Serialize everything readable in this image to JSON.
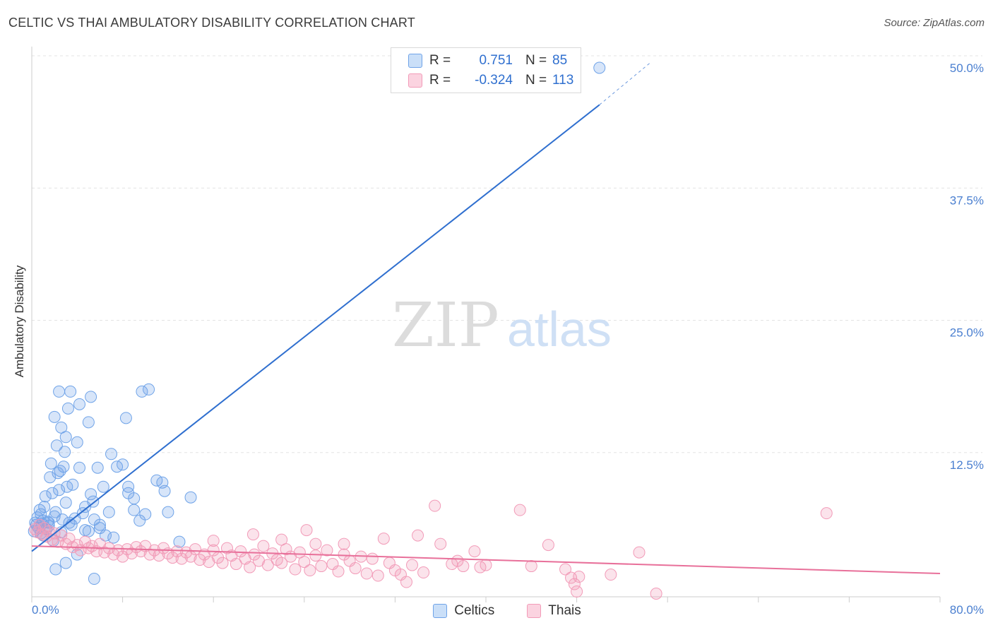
{
  "title": "CELTIC VS THAI AMBULATORY DISABILITY CORRELATION CHART",
  "source": "Source: ZipAtlas.com",
  "watermark": {
    "zip": "ZIP",
    "atlas": "atlas"
  },
  "stats": [
    {
      "r_label": "R =",
      "r_value": "0.751",
      "n_label": "N =",
      "n_value": "85"
    },
    {
      "r_label": "R =",
      "r_value": "-0.324",
      "n_label": "N =",
      "n_value": "113"
    }
  ],
  "legend": [
    {
      "label": "Celtics"
    },
    {
      "label": "Thais"
    }
  ],
  "chart_data": {
    "type": "scatter",
    "title": "CELTIC VS THAI AMBULATORY DISABILITY CORRELATION CHART",
    "xlabel": "",
    "ylabel": "Ambulatory Disability",
    "xlim": [
      0,
      80
    ],
    "ylim": [
      0,
      50
    ],
    "x_tick_labels": [
      {
        "value": 0,
        "label": "0.0%"
      },
      {
        "value": 80,
        "label": "80.0%"
      }
    ],
    "y_tick_labels": [
      {
        "value": 50,
        "label": "50.0%"
      },
      {
        "value": 37.5,
        "label": "37.5%"
      },
      {
        "value": 25,
        "label": "25.0%"
      },
      {
        "value": 12.5,
        "label": "12.5%"
      }
    ],
    "grid": true,
    "legend_position": "bottom-center",
    "colors": {
      "Celtics": "#6fa3e8",
      "Thais": "#f29bb8",
      "celtics_line": "#2f6fcf",
      "thais_line": "#e8709a"
    },
    "series": [
      {
        "name": "Celtics",
        "r": 0.751,
        "n": 85,
        "trend": {
          "x": [
            0,
            50
          ],
          "y": [
            4.3,
            46.5
          ],
          "dashed_to": [
            54.5,
            50.5
          ]
        },
        "points": [
          [
            0.2,
            6.2
          ],
          [
            0.3,
            7.0
          ],
          [
            0.4,
            6.8
          ],
          [
            0.5,
            7.5
          ],
          [
            0.6,
            6.5
          ],
          [
            0.7,
            8.2
          ],
          [
            0.8,
            7.8
          ],
          [
            0.9,
            6.9
          ],
          [
            1.0,
            7.2
          ],
          [
            1.1,
            8.5
          ],
          [
            1.2,
            9.5
          ],
          [
            1.3,
            6.4
          ],
          [
            1.4,
            7.1
          ],
          [
            1.5,
            6.7
          ],
          [
            1.6,
            11.3
          ],
          [
            1.7,
            12.6
          ],
          [
            1.8,
            9.8
          ],
          [
            1.9,
            5.3
          ],
          [
            2.0,
            7.6
          ],
          [
            2.1,
            8.0
          ],
          [
            2.2,
            14.3
          ],
          [
            2.3,
            11.7
          ],
          [
            2.4,
            10.1
          ],
          [
            2.5,
            11.9
          ],
          [
            2.6,
            6.1
          ],
          [
            2.7,
            7.3
          ],
          [
            2.8,
            12.3
          ],
          [
            2.9,
            13.7
          ],
          [
            3.0,
            8.9
          ],
          [
            3.1,
            10.4
          ],
          [
            3.3,
            7.0
          ],
          [
            3.5,
            6.8
          ],
          [
            3.6,
            10.6
          ],
          [
            3.8,
            7.4
          ],
          [
            4.0,
            14.6
          ],
          [
            4.2,
            12.2
          ],
          [
            4.5,
            7.9
          ],
          [
            4.7,
            6.3
          ],
          [
            5.0,
            6.2
          ],
          [
            5.2,
            9.7
          ],
          [
            5.5,
            7.3
          ],
          [
            5.8,
            12.2
          ],
          [
            6.0,
            6.8
          ],
          [
            6.3,
            10.4
          ],
          [
            6.5,
            5.8
          ],
          [
            7.0,
            13.5
          ],
          [
            7.5,
            12.3
          ],
          [
            8.0,
            12.5
          ],
          [
            8.5,
            10.4
          ],
          [
            9.0,
            8.2
          ],
          [
            9.5,
            7.2
          ],
          [
            10.0,
            7.8
          ],
          [
            11.0,
            11.0
          ],
          [
            11.5,
            10.8
          ],
          [
            12.0,
            8.0
          ],
          [
            13.0,
            5.2
          ],
          [
            14.0,
            9.4
          ],
          [
            2.0,
            17.0
          ],
          [
            3.2,
            17.8
          ],
          [
            2.6,
            16.0
          ],
          [
            3.0,
            15.1
          ],
          [
            4.2,
            18.2
          ],
          [
            2.4,
            19.4
          ],
          [
            3.4,
            19.4
          ],
          [
            5.2,
            18.9
          ],
          [
            5.0,
            16.5
          ],
          [
            8.3,
            16.9
          ],
          [
            9.7,
            19.4
          ],
          [
            10.3,
            19.6
          ],
          [
            11.7,
            10.0
          ],
          [
            8.5,
            9.8
          ],
          [
            9.0,
            9.3
          ],
          [
            6.8,
            8.0
          ],
          [
            5.4,
            9.0
          ],
          [
            4.7,
            8.5
          ],
          [
            6.0,
            6.5
          ],
          [
            7.2,
            5.6
          ],
          [
            4.0,
            4.0
          ],
          [
            3.0,
            3.2
          ],
          [
            2.1,
            2.6
          ],
          [
            5.5,
            1.7
          ],
          [
            1.5,
            7.0
          ],
          [
            0.8,
            6.0
          ],
          [
            50.0,
            50.0
          ],
          [
            1.0,
            5.8
          ]
        ]
      },
      {
        "name": "Thais",
        "r": -0.324,
        "n": 113,
        "trend": {
          "x": [
            0,
            80
          ],
          "y": [
            4.8,
            2.2
          ]
        },
        "points": [
          [
            0.3,
            6.4
          ],
          [
            0.5,
            6.1
          ],
          [
            0.7,
            6.8
          ],
          [
            0.9,
            5.9
          ],
          [
            1.1,
            6.5
          ],
          [
            1.3,
            5.7
          ],
          [
            1.5,
            6.2
          ],
          [
            1.8,
            5.4
          ],
          [
            2.0,
            6.0
          ],
          [
            2.3,
            5.2
          ],
          [
            2.6,
            5.8
          ],
          [
            3.0,
            5.0
          ],
          [
            3.3,
            5.5
          ],
          [
            3.6,
            4.7
          ],
          [
            4.0,
            4.9
          ],
          [
            4.3,
            4.4
          ],
          [
            4.7,
            5.2
          ],
          [
            5.0,
            4.6
          ],
          [
            5.3,
            4.8
          ],
          [
            5.7,
            4.3
          ],
          [
            6.0,
            5.0
          ],
          [
            6.4,
            4.2
          ],
          [
            6.8,
            4.6
          ],
          [
            7.2,
            4.0
          ],
          [
            7.6,
            4.4
          ],
          [
            8.0,
            3.8
          ],
          [
            8.4,
            4.5
          ],
          [
            8.8,
            4.1
          ],
          [
            9.2,
            4.7
          ],
          [
            9.6,
            4.3
          ],
          [
            10.0,
            4.8
          ],
          [
            10.4,
            4.0
          ],
          [
            10.8,
            4.4
          ],
          [
            11.2,
            3.9
          ],
          [
            11.6,
            4.6
          ],
          [
            12.0,
            4.1
          ],
          [
            12.4,
            3.7
          ],
          [
            12.8,
            4.3
          ],
          [
            13.2,
            3.6
          ],
          [
            13.6,
            4.2
          ],
          [
            14.0,
            3.8
          ],
          [
            14.4,
            4.5
          ],
          [
            14.8,
            3.5
          ],
          [
            15.2,
            4.0
          ],
          [
            15.6,
            3.3
          ],
          [
            16.0,
            4.4
          ],
          [
            16.4,
            3.7
          ],
          [
            16.8,
            3.2
          ],
          [
            17.2,
            4.6
          ],
          [
            17.6,
            3.9
          ],
          [
            18.0,
            3.1
          ],
          [
            18.4,
            4.3
          ],
          [
            18.8,
            3.6
          ],
          [
            19.2,
            2.8
          ],
          [
            19.6,
            4.0
          ],
          [
            20.0,
            3.4
          ],
          [
            20.4,
            4.8
          ],
          [
            20.8,
            3.0
          ],
          [
            21.2,
            4.1
          ],
          [
            21.6,
            3.5
          ],
          [
            22.0,
            3.2
          ],
          [
            22.4,
            4.5
          ],
          [
            22.8,
            3.8
          ],
          [
            23.2,
            2.6
          ],
          [
            23.6,
            4.2
          ],
          [
            24.0,
            3.3
          ],
          [
            24.5,
            2.5
          ],
          [
            25.0,
            3.9
          ],
          [
            25.5,
            2.9
          ],
          [
            26.0,
            4.4
          ],
          [
            26.5,
            3.1
          ],
          [
            27.0,
            2.4
          ],
          [
            27.5,
            4.0
          ],
          [
            28.0,
            3.4
          ],
          [
            28.5,
            2.7
          ],
          [
            29.0,
            3.8
          ],
          [
            29.5,
            2.2
          ],
          [
            30.0,
            3.6
          ],
          [
            30.5,
            2.0
          ],
          [
            31.0,
            5.5
          ],
          [
            31.5,
            3.2
          ],
          [
            32.0,
            2.5
          ],
          [
            32.5,
            2.1
          ],
          [
            33.0,
            1.4
          ],
          [
            33.5,
            3.0
          ],
          [
            34.0,
            5.8
          ],
          [
            34.5,
            2.3
          ],
          [
            35.5,
            8.6
          ],
          [
            36.0,
            5.0
          ],
          [
            37.0,
            3.1
          ],
          [
            37.5,
            3.4
          ],
          [
            38.0,
            2.9
          ],
          [
            39.0,
            4.3
          ],
          [
            39.5,
            2.8
          ],
          [
            40.0,
            3.0
          ],
          [
            43.0,
            8.2
          ],
          [
            44.0,
            2.9
          ],
          [
            45.5,
            4.9
          ],
          [
            47.0,
            2.6
          ],
          [
            47.5,
            1.8
          ],
          [
            47.8,
            1.2
          ],
          [
            48.0,
            0.5
          ],
          [
            48.2,
            1.9
          ],
          [
            51.0,
            2.1
          ],
          [
            53.5,
            4.2
          ],
          [
            55.0,
            0.3
          ],
          [
            70.0,
            7.9
          ],
          [
            16.0,
            5.3
          ],
          [
            19.5,
            5.9
          ],
          [
            22.0,
            5.4
          ],
          [
            24.2,
            6.3
          ],
          [
            25.0,
            5.0
          ],
          [
            27.5,
            5.0
          ]
        ]
      }
    ]
  }
}
